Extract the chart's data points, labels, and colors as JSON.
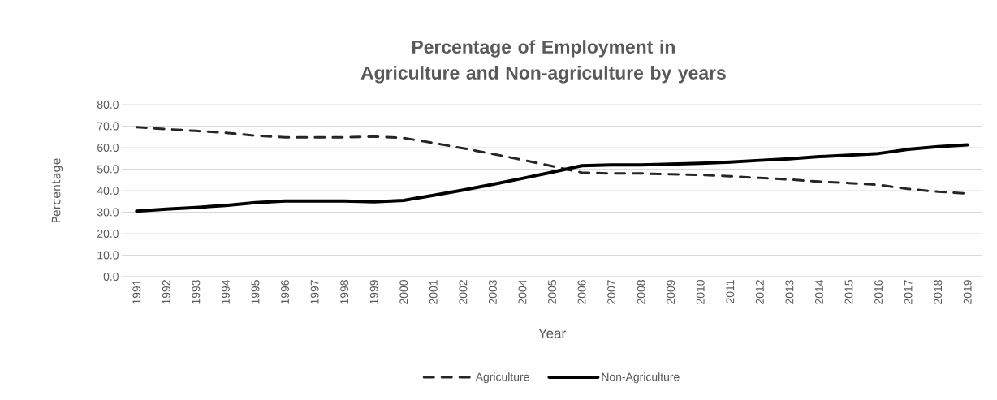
{
  "chart_data": {
    "type": "line",
    "title": "Percentage of Employment in Agriculture and Non-agriculture by years",
    "xlabel": "Year",
    "ylabel": "Percentage",
    "categories": [
      "1991",
      "1992",
      "1993",
      "1994",
      "1995",
      "1996",
      "1997",
      "1998",
      "1999",
      "2000",
      "2001",
      "2002",
      "2003",
      "2004",
      "2005",
      "2006",
      "2007",
      "2008",
      "2009",
      "2010",
      "2011",
      "2012",
      "2013",
      "2014",
      "2015",
      "2016",
      "2017",
      "2018",
      "2019"
    ],
    "series": [
      {
        "name": "Agriculture",
        "color": "#262626",
        "line_style": "dashed",
        "values": [
          69.5,
          68.6,
          67.8,
          66.9,
          65.6,
          64.8,
          64.8,
          64.8,
          65.2,
          64.5,
          62.2,
          59.7,
          57.1,
          54.3,
          51.4,
          48.4,
          48.0,
          48.0,
          47.6,
          47.3,
          46.7,
          45.9,
          45.2,
          44.2,
          43.5,
          42.7,
          40.8,
          39.5,
          38.7
        ]
      },
      {
        "name": "Non-Agriculture",
        "color": "#000000",
        "line_style": "solid",
        "values": [
          30.5,
          31.4,
          32.2,
          33.1,
          34.4,
          35.2,
          35.2,
          35.2,
          34.8,
          35.5,
          37.8,
          40.3,
          42.9,
          45.7,
          48.6,
          51.6,
          52.0,
          52.0,
          52.4,
          52.7,
          53.3,
          54.1,
          54.8,
          55.8,
          56.5,
          57.3,
          59.2,
          60.5,
          61.3
        ]
      }
    ],
    "ylim": [
      0,
      80
    ],
    "yticks": [
      {
        "value": 0,
        "label": "0.0"
      },
      {
        "value": 10,
        "label": "10.0"
      },
      {
        "value": 20,
        "label": "20.0"
      },
      {
        "value": 30,
        "label": "30.0"
      },
      {
        "value": 40,
        "label": "40.0"
      },
      {
        "value": 50,
        "label": "50.0"
      },
      {
        "value": 60,
        "label": "60.0"
      },
      {
        "value": 70,
        "label": "70.0"
      },
      {
        "value": 80,
        "label": "80.0"
      }
    ],
    "grid": "y",
    "legend": "bottom"
  }
}
